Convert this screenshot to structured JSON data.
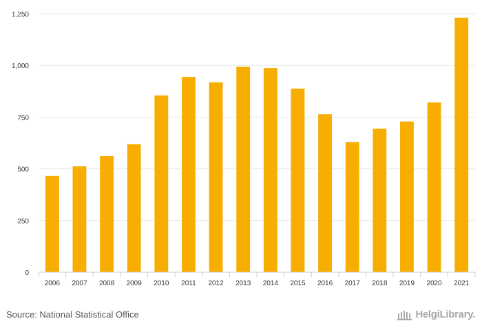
{
  "chart_data": {
    "type": "bar",
    "categories": [
      "2006",
      "2007",
      "2008",
      "2009",
      "2010",
      "2011",
      "2012",
      "2013",
      "2014",
      "2015",
      "2016",
      "2017",
      "2018",
      "2019",
      "2020",
      "2021"
    ],
    "values": [
      466,
      512,
      562,
      619,
      855,
      944,
      918,
      994,
      987,
      888,
      764,
      629,
      694,
      729,
      821,
      1231
    ],
    "ylim": [
      0,
      1250
    ],
    "yticks": [
      0,
      250,
      500,
      750,
      1000,
      1250
    ],
    "ytick_labels": [
      "0",
      "250",
      "500",
      "750",
      "1,000",
      "1,250"
    ],
    "bar_color": "#f7ae00",
    "grid": true,
    "title": "",
    "xlabel": "",
    "ylabel": ""
  },
  "footer": {
    "source": "Source: National Statistical Office",
    "brand": "HelgiLibrary."
  }
}
